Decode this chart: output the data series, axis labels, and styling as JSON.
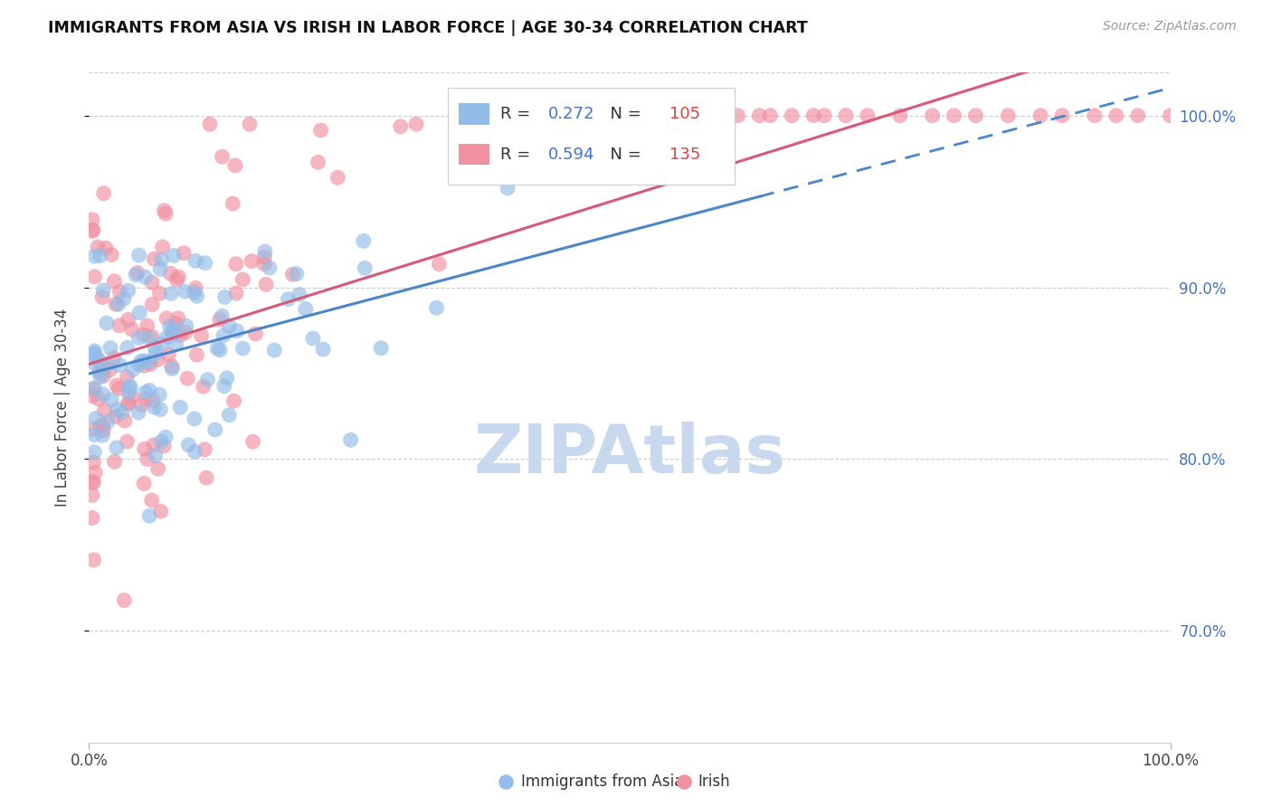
{
  "title": "IMMIGRANTS FROM ASIA VS IRISH IN LABOR FORCE | AGE 30-34 CORRELATION CHART",
  "source": "Source: ZipAtlas.com",
  "ylabel": "In Labor Force | Age 30-34",
  "legend_label_1": "Immigrants from Asia",
  "legend_label_2": "Irish",
  "R1": 0.272,
  "N1": 105,
  "R2": 0.594,
  "N2": 135,
  "color_blue": "#93bce8",
  "color_pink": "#f090a0",
  "color_line_blue": "#4a86c8",
  "color_line_pink": "#d85878",
  "color_legend_R": "#4472c4",
  "color_legend_N": "#e04040",
  "watermark_color": "#c8d8ee",
  "xlim": [
    0.0,
    1.0
  ],
  "ylim": [
    0.635,
    1.025
  ],
  "ytick_labels": [
    "70.0%",
    "80.0%",
    "90.0%",
    "100.0%"
  ],
  "ytick_values": [
    0.7,
    0.8,
    0.9,
    1.0
  ],
  "seed": 1234
}
